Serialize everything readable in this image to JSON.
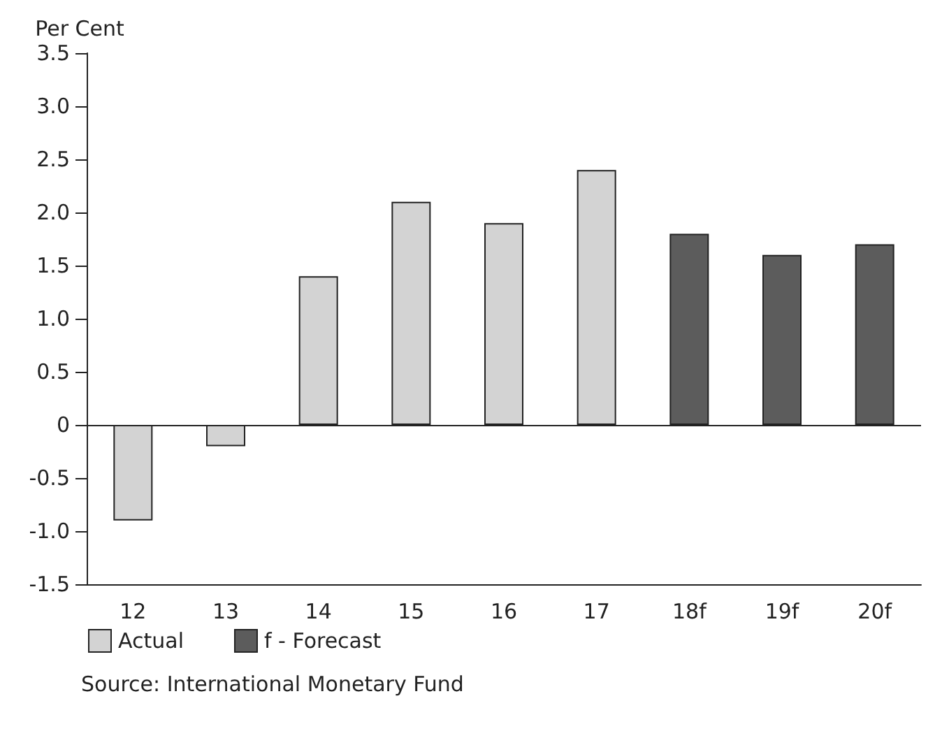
{
  "chart_data": {
    "type": "bar",
    "ylabel": "Per Cent",
    "categories": [
      "12",
      "13",
      "14",
      "15",
      "16",
      "17",
      "18f",
      "19f",
      "20f"
    ],
    "series": [
      {
        "name": "Actual",
        "color": "#d3d3d3",
        "values": [
          -0.9,
          -0.2,
          1.4,
          2.1,
          1.9,
          2.4,
          null,
          null,
          null
        ]
      },
      {
        "name": "f - Forecast",
        "color": "#5c5c5c",
        "values": [
          null,
          null,
          null,
          null,
          null,
          null,
          1.8,
          1.6,
          1.7
        ]
      }
    ],
    "ylim": [
      -1.5,
      3.5
    ],
    "yticks": [
      {
        "value": -1.5,
        "label": "-1.5"
      },
      {
        "value": -1,
        "label": "-1.0"
      },
      {
        "value": -0.5,
        "label": "-0.5"
      },
      0,
      {
        "value": 0.5,
        "label": "0.5"
      },
      {
        "value": 1,
        "label": "1.0"
      },
      {
        "value": 1.5,
        "label": "1.5"
      },
      {
        "value": 2,
        "label": "2.0"
      },
      {
        "value": 2.5,
        "label": "2.5"
      },
      {
        "value": 3,
        "label": "3.0"
      },
      {
        "value": 3.5,
        "label": "3.5"
      }
    ],
    "ref_lines": [
      {
        "axis": "y",
        "value": 0,
        "color": "#222222"
      }
    ],
    "grid": false,
    "legend": "bottom left",
    "annotations": [
      "Source: International Monetary Fund"
    ]
  }
}
